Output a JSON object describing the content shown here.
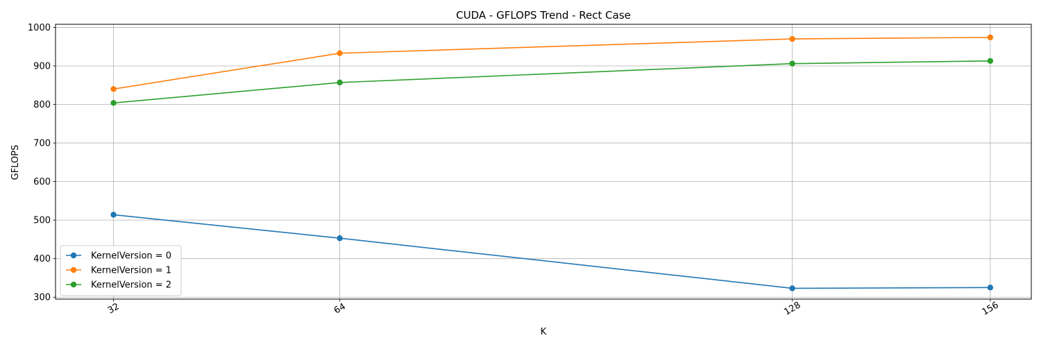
{
  "chart_data": {
    "type": "line",
    "title": "CUDA - GFLOPS Trend - Rect Case",
    "xlabel": "K",
    "ylabel": "GFLOPS",
    "x": [
      32,
      64,
      128,
      156
    ],
    "x_tick_labels": [
      "32",
      "64",
      "128",
      "156"
    ],
    "xlim": [
      23.8,
      161.8
    ],
    "ylim": [
      295,
      1008
    ],
    "y_ticks": [
      300,
      400,
      500,
      600,
      700,
      800,
      900,
      1000
    ],
    "grid": true,
    "legend_position": "lower-left",
    "series": [
      {
        "name": "KernelVersion = 0",
        "color": "#1f77b4",
        "values": [
          514,
          453,
          323,
          325
        ]
      },
      {
        "name": "KernelVersion = 1",
        "color": "#ff7f0e",
        "values": [
          840,
          933,
          970,
          974
        ]
      },
      {
        "name": "KernelVersion = 2",
        "color": "#2ca02c",
        "values": [
          804,
          857,
          906,
          913
        ]
      }
    ]
  }
}
